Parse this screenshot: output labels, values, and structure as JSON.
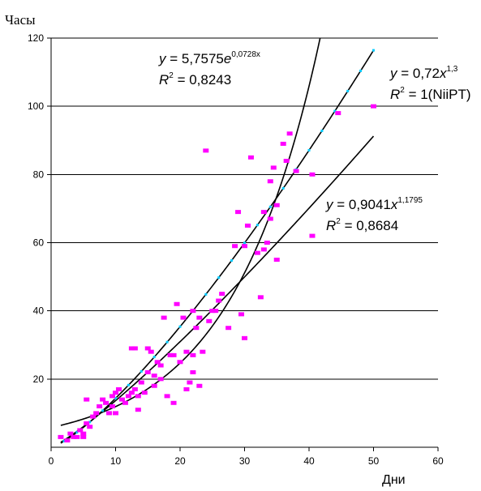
{
  "chart_data": {
    "type": "scatter",
    "title": "",
    "ylabel": "Часы",
    "xlabel": "Дни",
    "xlim": [
      0,
      60
    ],
    "ylim": [
      0,
      120
    ],
    "x_ticks": [
      0,
      10,
      20,
      30,
      40,
      50,
      60
    ],
    "y_ticks": [
      20,
      40,
      60,
      80,
      100,
      120
    ],
    "y_tick_labels": [
      "20",
      "40",
      "60",
      "80",
      "100",
      "120"
    ],
    "x_tick_labels": [
      "0",
      "10",
      "20",
      "30",
      "40",
      "50",
      "60"
    ],
    "grid": "horizontal",
    "colors": {
      "points": "#ff00ff",
      "lines": "#000000",
      "niipt_markers": "#00ccff"
    },
    "series": [
      {
        "kind": "points",
        "points": [
          [
            1.5,
            3
          ],
          [
            2.5,
            2
          ],
          [
            3,
            4
          ],
          [
            3.5,
            3
          ],
          [
            4,
            3
          ],
          [
            4.5,
            5
          ],
          [
            5,
            3
          ],
          [
            5,
            4
          ],
          [
            5.5,
            7
          ],
          [
            5.5,
            14
          ],
          [
            6,
            6
          ],
          [
            6.5,
            9
          ],
          [
            7,
            10
          ],
          [
            7.5,
            12
          ],
          [
            8,
            14
          ],
          [
            8.5,
            13
          ],
          [
            9,
            10
          ],
          [
            9.5,
            12
          ],
          [
            9.5,
            15
          ],
          [
            10,
            16
          ],
          [
            10,
            10
          ],
          [
            10.5,
            17
          ],
          [
            11,
            14
          ],
          [
            11.5,
            13
          ],
          [
            12,
            15
          ],
          [
            12.5,
            16
          ],
          [
            12.5,
            29
          ],
          [
            13,
            29
          ],
          [
            13,
            17
          ],
          [
            13.5,
            11
          ],
          [
            13.5,
            15
          ],
          [
            14,
            19
          ],
          [
            14.5,
            16
          ],
          [
            15,
            22
          ],
          [
            15,
            29
          ],
          [
            15.5,
            28
          ],
          [
            16,
            18
          ],
          [
            16,
            21
          ],
          [
            16.5,
            25
          ],
          [
            17,
            20
          ],
          [
            17,
            24
          ],
          [
            17.5,
            38
          ],
          [
            18,
            15
          ],
          [
            18.5,
            27
          ],
          [
            19,
            13
          ],
          [
            19,
            27
          ],
          [
            19.5,
            42
          ],
          [
            20,
            25
          ],
          [
            20.5,
            38
          ],
          [
            21,
            28
          ],
          [
            21,
            17
          ],
          [
            21.5,
            19
          ],
          [
            22,
            22
          ],
          [
            22,
            27
          ],
          [
            22,
            40
          ],
          [
            22.5,
            35
          ],
          [
            23,
            38
          ],
          [
            23,
            18
          ],
          [
            23.5,
            28
          ],
          [
            24,
            87
          ],
          [
            24.5,
            37
          ],
          [
            25,
            40
          ],
          [
            25.5,
            40
          ],
          [
            26,
            43
          ],
          [
            26.5,
            45
          ],
          [
            27.5,
            35
          ],
          [
            28.5,
            59
          ],
          [
            29,
            69
          ],
          [
            29.5,
            39
          ],
          [
            30,
            59
          ],
          [
            30,
            32
          ],
          [
            30.5,
            65
          ],
          [
            31,
            85
          ],
          [
            32,
            57
          ],
          [
            32.5,
            44
          ],
          [
            33,
            69
          ],
          [
            33,
            58
          ],
          [
            33.5,
            60
          ],
          [
            34,
            67
          ],
          [
            34,
            78
          ],
          [
            34.5,
            82
          ],
          [
            35,
            71
          ],
          [
            35,
            55
          ],
          [
            36,
            89
          ],
          [
            36.5,
            84
          ],
          [
            37,
            92
          ],
          [
            38,
            81
          ],
          [
            40.5,
            80
          ],
          [
            40.5,
            62
          ],
          [
            44.5,
            98
          ],
          [
            50,
            100
          ]
        ]
      },
      {
        "kind": "curve",
        "model": "exponential",
        "a": 5.7575,
        "b": 0.0728
      },
      {
        "kind": "curve",
        "model": "power",
        "a": 0.72,
        "b": 1.3,
        "niipt_markers": true
      },
      {
        "kind": "curve",
        "model": "power",
        "a": 0.9041,
        "b": 1.1795
      }
    ],
    "annotations": [
      {
        "eq_prefix": "y",
        "eq_mid": " = 5,7575",
        "eq_base": "e",
        "eq_exp": "0,0728x",
        "r2_prefix": "R",
        "r2_sup": "2",
        "r2_value": " = 0,8243"
      },
      {
        "eq_prefix": "y",
        "eq_mid": " = 0,72",
        "eq_base": "x",
        "eq_exp": "1,3",
        "r2_prefix": "R",
        "r2_sup": "2",
        "r2_value": " = 1(NiiPT)"
      },
      {
        "eq_prefix": "y",
        "eq_mid": " = 0,9041",
        "eq_base": "x",
        "eq_exp": "1,1795",
        "r2_prefix": "R",
        "r2_sup": "2",
        "r2_value": " = 0,8684"
      }
    ]
  }
}
